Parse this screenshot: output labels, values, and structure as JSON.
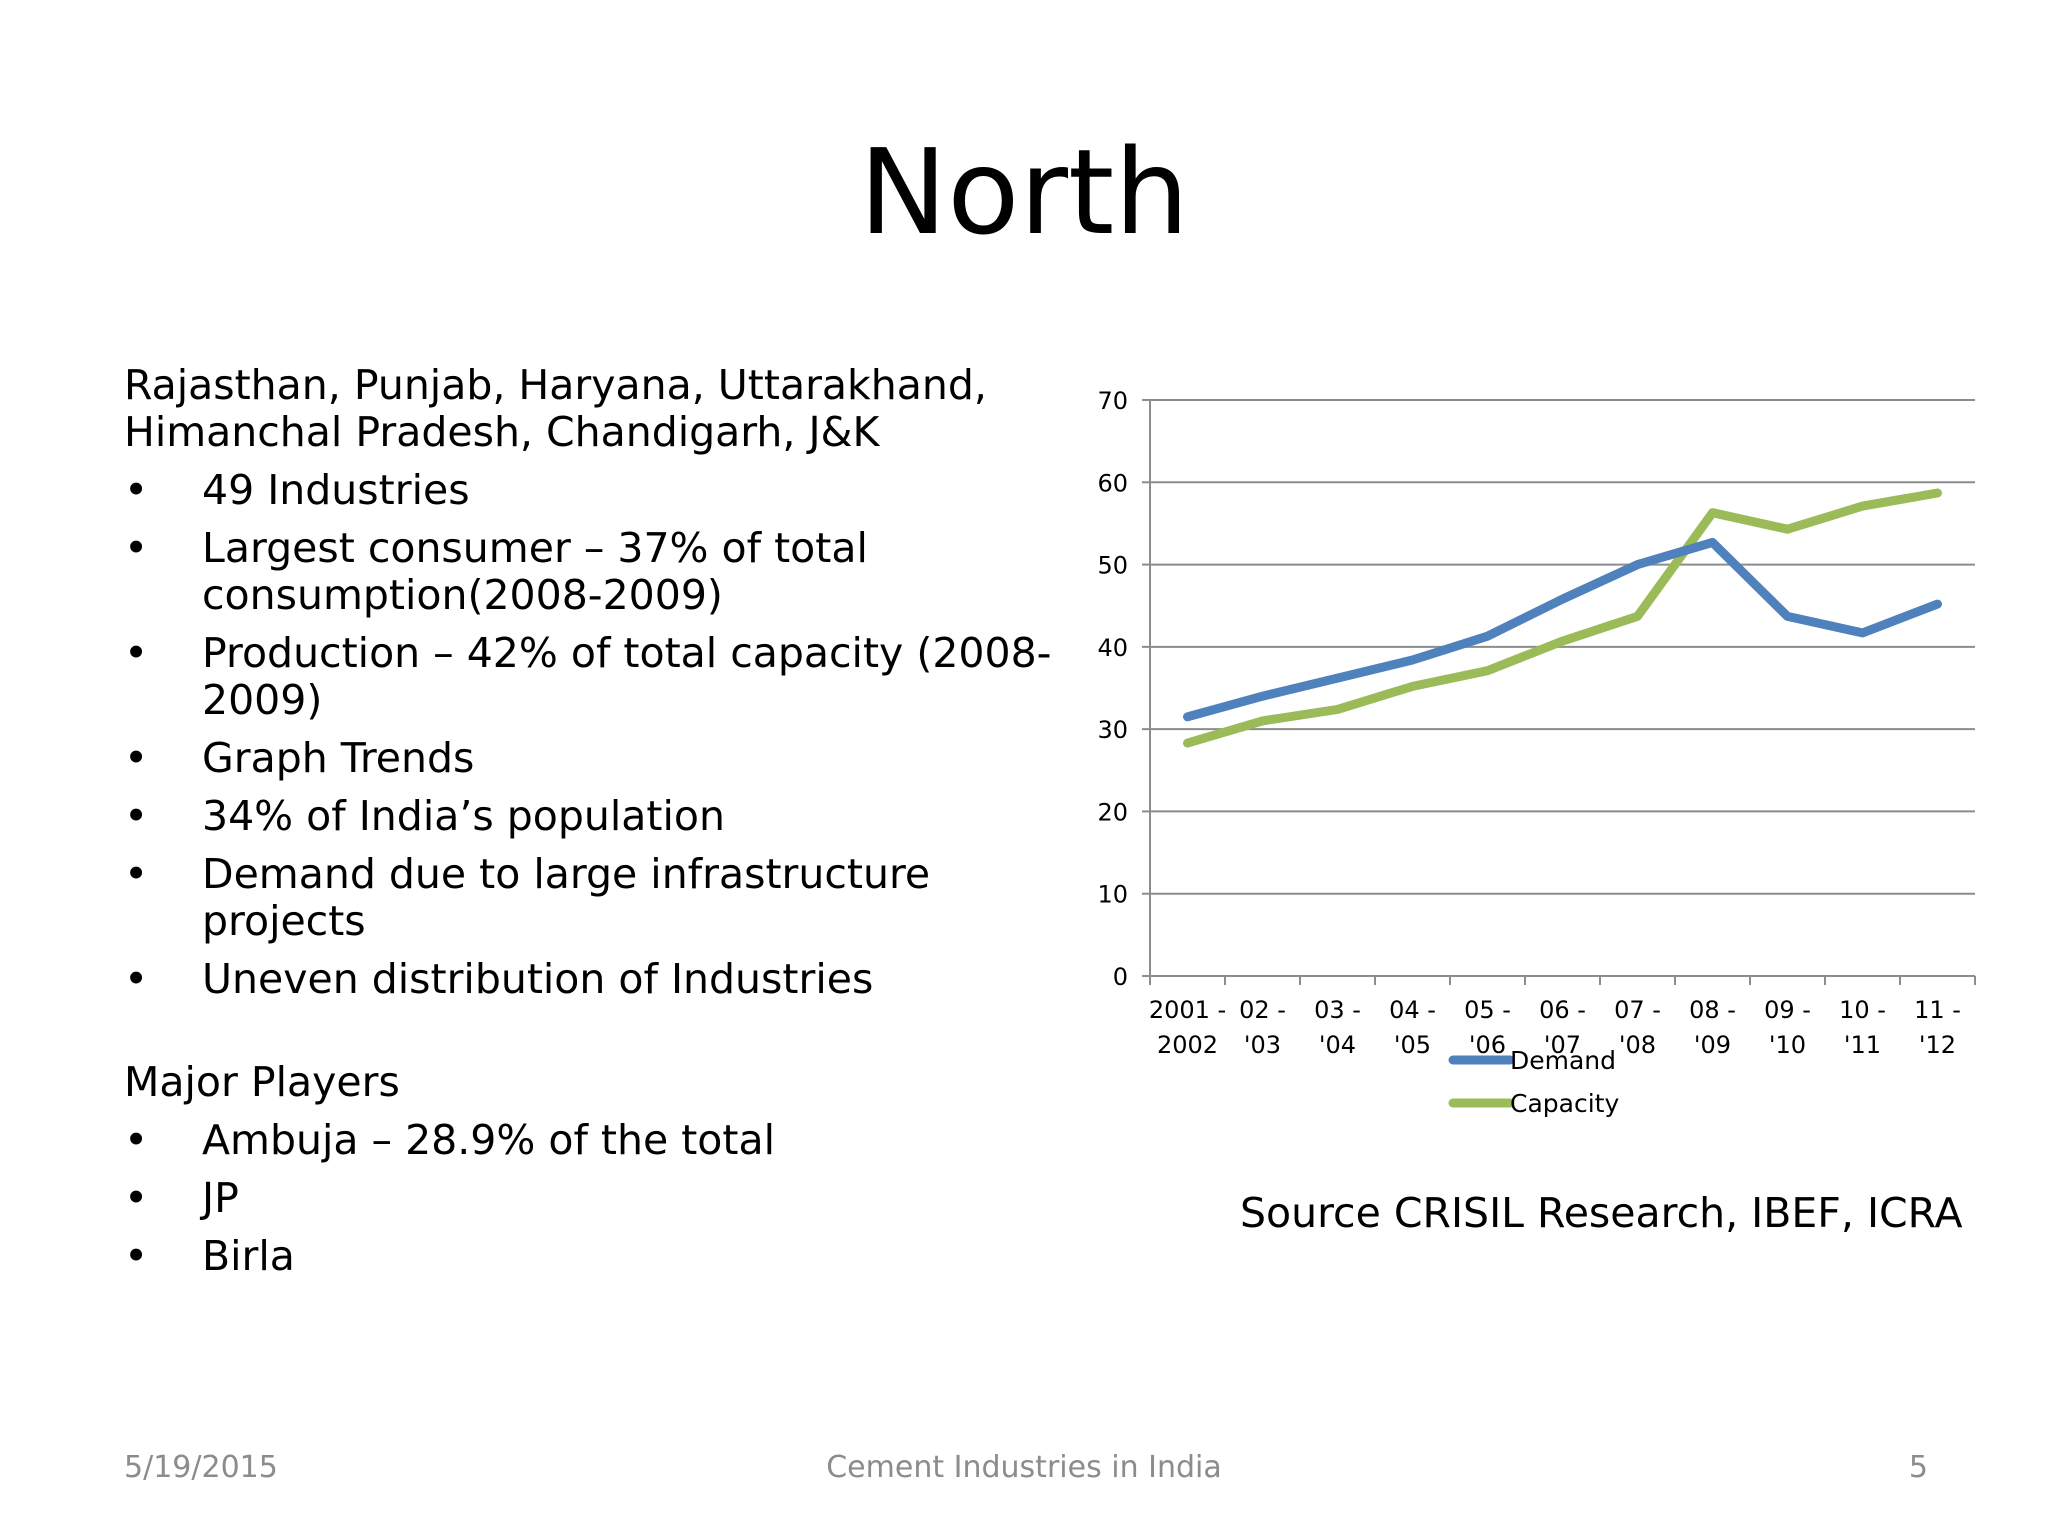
{
  "slide": {
    "title": "North",
    "regions": "Rajasthan, Punjab, Haryana, Uttarakhand, Himanchal Pradesh, Chandigarh, J&K",
    "bullets": [
      "49 Industries",
      "Largest consumer – 37% of total consumption(2008-2009)",
      "Production – 42% of total capacity (2008-2009)",
      "Graph Trends",
      "34% of India’s population",
      "Demand due to large infrastructure projects",
      "Uneven distribution of Industries"
    ],
    "players_heading": "Major Players",
    "players": [
      "Ambuja – 28.9% of the total",
      "JP",
      "Birla"
    ],
    "bullet_symbol": "•",
    "source": "Source CRISIL Research, IBEF, ICRA"
  },
  "footer": {
    "date": "5/19/2015",
    "center": "Cement Industries in India",
    "page_number": "5"
  },
  "chart_data": {
    "type": "line",
    "categories": [
      [
        "2001 -",
        "2002"
      ],
      [
        "02 -",
        "'03"
      ],
      [
        "03 -",
        "'04"
      ],
      [
        "04 -",
        "'05"
      ],
      [
        "05 -",
        "'06"
      ],
      [
        "06 -",
        "'07"
      ],
      [
        "07 -",
        "'08"
      ],
      [
        "08 -",
        "'09"
      ],
      [
        "09 -",
        "'10"
      ],
      [
        "10 -",
        "'11"
      ],
      [
        "11 -",
        "'12"
      ]
    ],
    "series": [
      {
        "name": "Demand",
        "color": "#4F81BD",
        "values": [
          31.5,
          34,
          36.2,
          38.4,
          41.3,
          45.8,
          50,
          52.7,
          43.7,
          41.7,
          45.2
        ]
      },
      {
        "name": "Capacity",
        "color": "#9BBB59",
        "values": [
          28.3,
          31,
          32.4,
          35.2,
          37.1,
          40.7,
          43.7,
          56.3,
          54.3,
          57.1,
          58.7
        ]
      }
    ],
    "yticks": [
      "0",
      "10",
      "20",
      "30",
      "40",
      "50",
      "60",
      "70"
    ],
    "ylim": [
      0,
      70
    ],
    "grid": true,
    "legend": "bottom",
    "title": "",
    "xlabel": "",
    "ylabel": ""
  }
}
